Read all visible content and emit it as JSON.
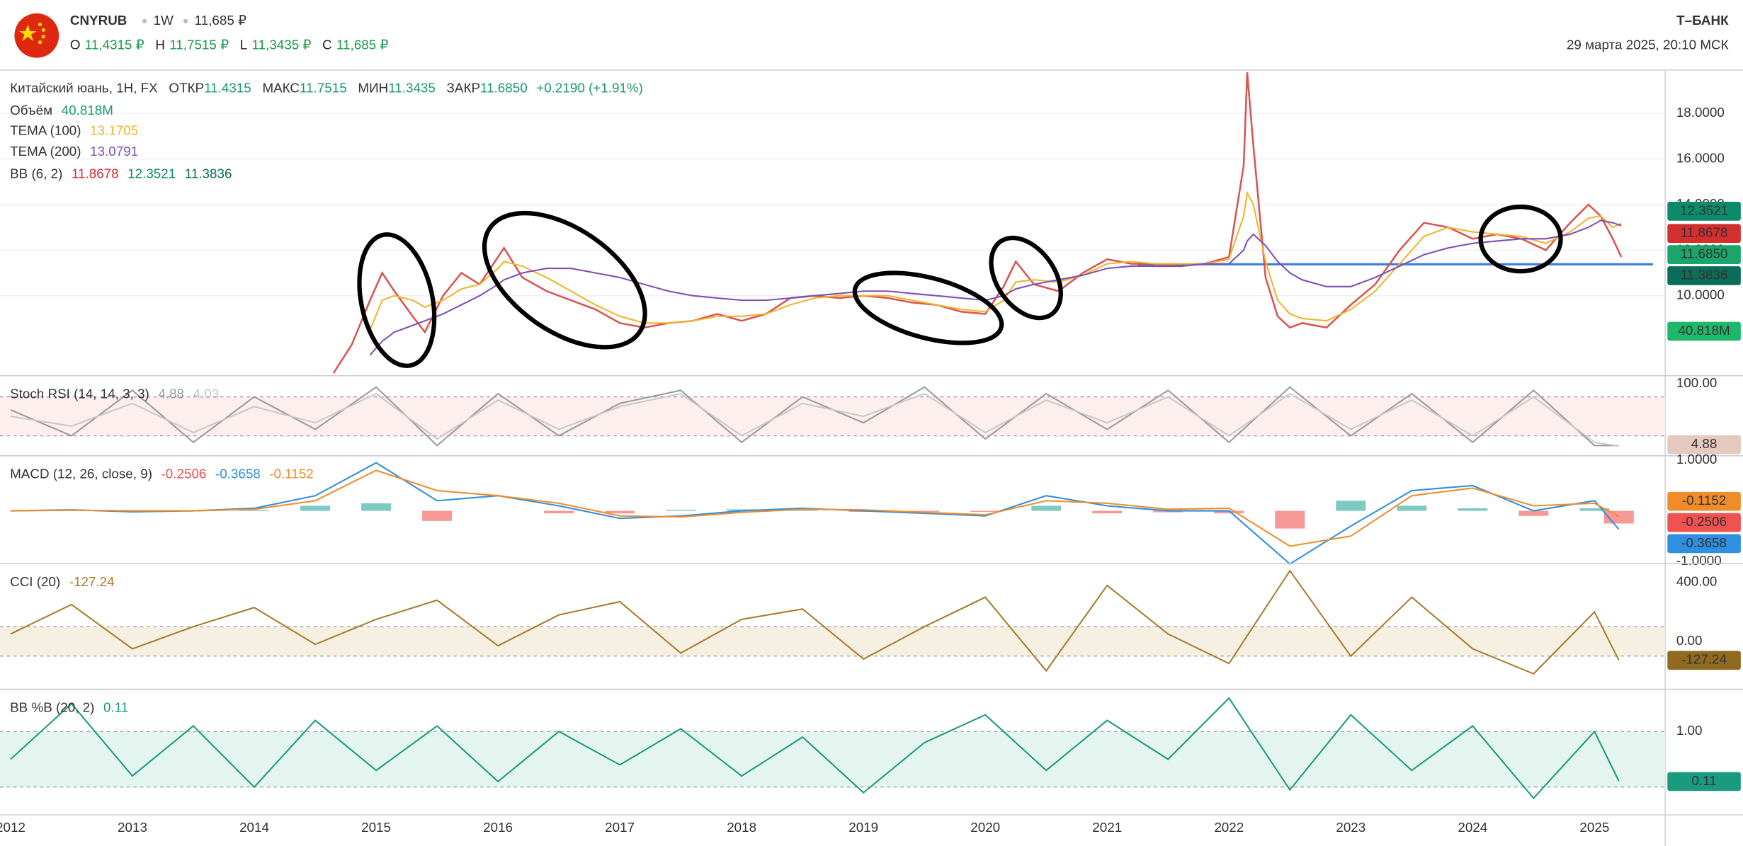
{
  "header": {
    "symbol": "CNYRUB",
    "interval": "1W",
    "price": "11,685 ₽",
    "ohlc": [
      {
        "label": "O",
        "value": "11,4315 ₽"
      },
      {
        "label": "H",
        "value": "11,7515 ₽"
      },
      {
        "label": "L",
        "value": "11,3435 ₽"
      },
      {
        "label": "C",
        "value": "11,685 ₽"
      }
    ],
    "brand": "Т–БАНК",
    "datetime": "29 марта 2025, 20:10 МСК"
  },
  "chart_data": [
    {
      "type": "line",
      "title": "Китайский юань, 1Н, FX",
      "ohlc": [
        {
          "label": "ОТКР",
          "value": "11.4315"
        },
        {
          "label": "МАКС",
          "value": "11.7515"
        },
        {
          "label": "МИН",
          "value": "11.3435"
        },
        {
          "label": "ЗАКР",
          "value": "11.6850"
        }
      ],
      "change": "+0.2190 (+1.91%)",
      "volume": {
        "name": "Объём",
        "value": "40.818M"
      },
      "bb": {
        "name": "BB (6, 2)",
        "values": [
          "11.8678",
          "12.3521",
          "11.3836"
        ],
        "colors": [
          "#d32f2f",
          "#0d8a6a",
          "#0b6e5a"
        ]
      },
      "hline": {
        "value": 11.38,
        "from": 2021.25,
        "to": 2025.48,
        "color": "#3b7ddd"
      },
      "x": [
        2014.65,
        2014.8,
        2014.95,
        2015.05,
        2015.15,
        2015.3,
        2015.4,
        2015.55,
        2015.7,
        2015.85,
        2016.0,
        2016.05,
        2016.2,
        2016.4,
        2016.6,
        2016.8,
        2017.0,
        2017.2,
        2017.4,
        2017.6,
        2017.8,
        2018.0,
        2018.2,
        2018.4,
        2018.6,
        2018.8,
        2019.0,
        2019.2,
        2019.4,
        2019.6,
        2019.8,
        2020.0,
        2020.15,
        2020.25,
        2020.4,
        2020.6,
        2020.8,
        2021.0,
        2021.2,
        2021.4,
        2021.6,
        2021.8,
        2022.0,
        2022.12,
        2022.15,
        2022.2,
        2022.3,
        2022.4,
        2022.5,
        2022.6,
        2022.8,
        2023.0,
        2023.2,
        2023.4,
        2023.6,
        2023.8,
        2024.0,
        2024.2,
        2024.4,
        2024.6,
        2024.8,
        2024.95,
        2025.05,
        2025.15,
        2025.22
      ],
      "series": [
        {
          "color": "#d9534f",
          "values": [
            6.6,
            7.85,
            9.8,
            11.0,
            10.2,
            9.1,
            8.4,
            10.0,
            11.0,
            10.5,
            11.7,
            12.1,
            10.8,
            10.2,
            9.8,
            9.4,
            8.8,
            8.6,
            8.8,
            8.9,
            9.2,
            8.9,
            9.2,
            9.9,
            10.0,
            9.9,
            10.0,
            9.9,
            9.7,
            9.6,
            9.3,
            9.2,
            10.4,
            11.5,
            10.5,
            10.2,
            11.0,
            11.6,
            11.4,
            11.4,
            11.3,
            11.4,
            11.7,
            15.7,
            19.8,
            16.6,
            10.8,
            9.1,
            8.6,
            8.8,
            8.6,
            9.6,
            10.5,
            12.0,
            13.2,
            13.0,
            12.5,
            12.7,
            12.5,
            12.0,
            13.2,
            14.0,
            13.5,
            12.5,
            11.7
          ]
        },
        {
          "name": "TEMA (100)",
          "color": "#f0b429",
          "values": [
            null,
            null,
            8.5,
            9.8,
            10.0,
            9.8,
            9.5,
            9.8,
            10.3,
            10.5,
            11.2,
            11.5,
            11.3,
            10.8,
            10.2,
            9.6,
            9.1,
            8.8,
            8.8,
            8.9,
            9.1,
            9.1,
            9.2,
            9.6,
            9.9,
            10.0,
            10.0,
            10.0,
            9.8,
            9.6,
            9.4,
            9.3,
            9.8,
            10.6,
            10.7,
            10.6,
            10.9,
            11.4,
            11.5,
            11.4,
            11.4,
            11.4,
            11.6,
            13.5,
            14.5,
            14.0,
            11.5,
            9.8,
            9.2,
            9.0,
            8.9,
            9.4,
            10.2,
            11.4,
            12.6,
            13.0,
            12.8,
            12.7,
            12.6,
            12.3,
            12.8,
            13.4,
            13.5,
            13.0,
            13.1705
          ]
        },
        {
          "name": "TEMA (200)",
          "color": "#7b4fb5",
          "values": [
            null,
            null,
            7.4,
            8.0,
            8.4,
            8.7,
            8.9,
            9.2,
            9.6,
            10.0,
            10.5,
            10.7,
            11.0,
            11.2,
            11.2,
            11.0,
            10.8,
            10.5,
            10.2,
            10.0,
            9.9,
            9.8,
            9.8,
            9.9,
            10.0,
            10.1,
            10.2,
            10.2,
            10.1,
            10.0,
            9.9,
            9.8,
            10.0,
            10.3,
            10.5,
            10.7,
            10.9,
            11.2,
            11.3,
            11.3,
            11.3,
            11.4,
            11.4,
            12.0,
            12.4,
            12.7,
            12.2,
            11.5,
            11.0,
            10.7,
            10.4,
            10.4,
            10.8,
            11.3,
            11.8,
            12.1,
            12.3,
            12.4,
            12.5,
            12.5,
            12.7,
            13.0,
            13.3,
            13.2,
            13.0791
          ]
        }
      ],
      "xlim": [
        2011.913,
        2025.58
      ],
      "xticks": [
        2012,
        2013,
        2014,
        2015,
        2016,
        2017,
        2018,
        2019,
        2020,
        2021,
        2022,
        2023,
        2024,
        2025
      ],
      "ylim": [
        6.49,
        19.9
      ],
      "yticks": [
        {
          "value": 10,
          "label": "10.0000"
        },
        {
          "value": 12,
          "label": "12.0000"
        },
        {
          "value": 14,
          "label": "14.0000"
        },
        {
          "value": 16,
          "label": "16.0000"
        },
        {
          "value": 18,
          "label": "18.0000"
        }
      ],
      "grid": true
    },
    {
      "type": "line",
      "title": "Stoch RSI (14, 14, 3, 3)",
      "x": [
        2012,
        2012.5,
        2013,
        2013.5,
        2014,
        2014.5,
        2015,
        2015.5,
        2016,
        2016.5,
        2017,
        2017.5,
        2018,
        2018.5,
        2019,
        2019.5,
        2020,
        2020.5,
        2021,
        2021.5,
        2022,
        2022.5,
        2023,
        2023.5,
        2024,
        2024.5,
        2025,
        2025.2
      ],
      "series": [
        {
          "color": "#9a9a9a",
          "values": [
            60,
            20,
            90,
            10,
            80,
            30,
            95,
            5,
            85,
            20,
            70,
            90,
            10,
            80,
            40,
            95,
            15,
            85,
            30,
            90,
            10,
            95,
            20,
            85,
            10,
            90,
            5,
            4.88
          ]
        },
        {
          "color": "#c8c8c8",
          "values": [
            50,
            35,
            70,
            25,
            65,
            40,
            85,
            15,
            75,
            30,
            65,
            85,
            20,
            70,
            50,
            85,
            25,
            75,
            40,
            80,
            20,
            85,
            30,
            75,
            20,
            80,
            10,
            4.03
          ]
        }
      ],
      "xlim": [
        2011.913,
        2025.58
      ],
      "ylim": [
        -10.8,
        112.5
      ],
      "yticks": [
        {
          "value": 100,
          "label": "100.00"
        }
      ],
      "levels": [
        80,
        20
      ],
      "band": "#fcefed",
      "tag_color": "#e5c9bf"
    },
    {
      "type": "line",
      "title": "MACD (12, 26, close, 9)",
      "x": [
        2012,
        2012.5,
        2013,
        2013.5,
        2014,
        2014.5,
        2015,
        2015.5,
        2016,
        2016.5,
        2017,
        2017.5,
        2018,
        2018.5,
        2019,
        2019.5,
        2020,
        2020.5,
        2021,
        2021.5,
        2022,
        2022.5,
        2023,
        2023.5,
        2024,
        2024.5,
        2025,
        2025.2
      ],
      "series": [
        {
          "kind": "histogram",
          "color": "#ef5350",
          "up_color": "#26a69a",
          "values": [
            0,
            0.01,
            -0.02,
            0,
            0.02,
            0.1,
            0.15,
            -0.2,
            0,
            -0.05,
            -0.05,
            0.02,
            0.03,
            0.02,
            -0.02,
            -0.02,
            -0.02,
            0.1,
            -0.05,
            -0.03,
            -0.05,
            -0.35,
            0.2,
            0.1,
            0.05,
            -0.1,
            0.05,
            -0.2506
          ]
        },
        {
          "color": "#2f8fe0",
          "values": [
            0,
            0.02,
            -0.02,
            0,
            0.05,
            0.3,
            0.95,
            0.2,
            0.3,
            0.1,
            -0.15,
            -0.1,
            0,
            0.05,
            0,
            -0.05,
            -0.1,
            0.3,
            0.1,
            0,
            0,
            -1.05,
            -0.3,
            0.4,
            0.5,
            0,
            0.2,
            -0.3658
          ]
        },
        {
          "color": "#f08c2a",
          "values": [
            0,
            0.01,
            0,
            0,
            0.03,
            0.2,
            0.8,
            0.4,
            0.3,
            0.15,
            -0.1,
            -0.12,
            -0.03,
            0.03,
            0.02,
            -0.03,
            -0.08,
            0.2,
            0.15,
            0.03,
            0.05,
            -0.7,
            -0.5,
            0.3,
            0.45,
            0.1,
            0.15,
            -0.1152
          ]
        }
      ],
      "xlim": [
        2011.913,
        2025.58
      ],
      "ylim": [
        -1.044,
        1.088
      ],
      "yticks": [
        {
          "value": 1,
          "label": "1.0000"
        },
        {
          "value": -1,
          "label": "-1.0000"
        }
      ]
    },
    {
      "type": "line",
      "title": "CCI (20)",
      "x": [
        2012,
        2012.5,
        2013,
        2013.5,
        2014,
        2014.5,
        2015,
        2015.5,
        2016,
        2016.5,
        2017,
        2017.5,
        2018,
        2018.5,
        2019,
        2019.5,
        2020,
        2020.5,
        2021,
        2021.5,
        2022,
        2022.5,
        2023,
        2023.5,
        2024,
        2024.5,
        2025,
        2025.2
      ],
      "series": [
        {
          "color": "#a97a2b",
          "values": [
            50,
            250,
            -50,
            100,
            230,
            -20,
            150,
            280,
            -30,
            180,
            270,
            -80,
            150,
            220,
            -120,
            100,
            300,
            -200,
            380,
            50,
            -150,
            480,
            -100,
            300,
            -50,
            -220,
            200,
            -127.24
          ]
        }
      ],
      "xlim": [
        2011.913,
        2025.58
      ],
      "ylim": [
        -325,
        528
      ],
      "yticks": [
        {
          "value": 400,
          "label": "400.00"
        },
        {
          "value": 0,
          "label": "0.00"
        }
      ],
      "levels": [
        100,
        -100
      ],
      "band": "#f6f0e3",
      "tag_color": "#8f6a1f"
    },
    {
      "type": "line",
      "title": "BB %B (20, 2)",
      "x": [
        2012,
        2012.5,
        2013,
        2013.5,
        2014,
        2014.5,
        2015,
        2015.5,
        2016,
        2016.5,
        2017,
        2017.5,
        2018,
        2018.5,
        2019,
        2019.5,
        2020,
        2020.5,
        2021,
        2021.5,
        2022,
        2022.5,
        2023,
        2023.5,
        2024,
        2024.5,
        2025,
        2025.2
      ],
      "series": [
        {
          "color": "#1a9a7e",
          "values": [
            0.5,
            1.5,
            0.2,
            1.1,
            0,
            1.2,
            0.3,
            1.1,
            0.1,
            1.0,
            0.4,
            1.05,
            0.2,
            0.9,
            -0.1,
            0.8,
            1.3,
            0.3,
            1.2,
            0.5,
            1.6,
            -0.05,
            1.3,
            0.3,
            1.1,
            -0.2,
            1.0,
            0.11
          ]
        }
      ],
      "xlim": [
        2011.913,
        2025.58
      ],
      "ylim": [
        -0.5,
        1.76
      ],
      "yticks": [
        {
          "value": 1,
          "label": "1.00"
        }
      ],
      "levels": [
        1,
        0
      ],
      "band": "#e4f4ef",
      "tag_color": "#1a9a7e"
    }
  ]
}
